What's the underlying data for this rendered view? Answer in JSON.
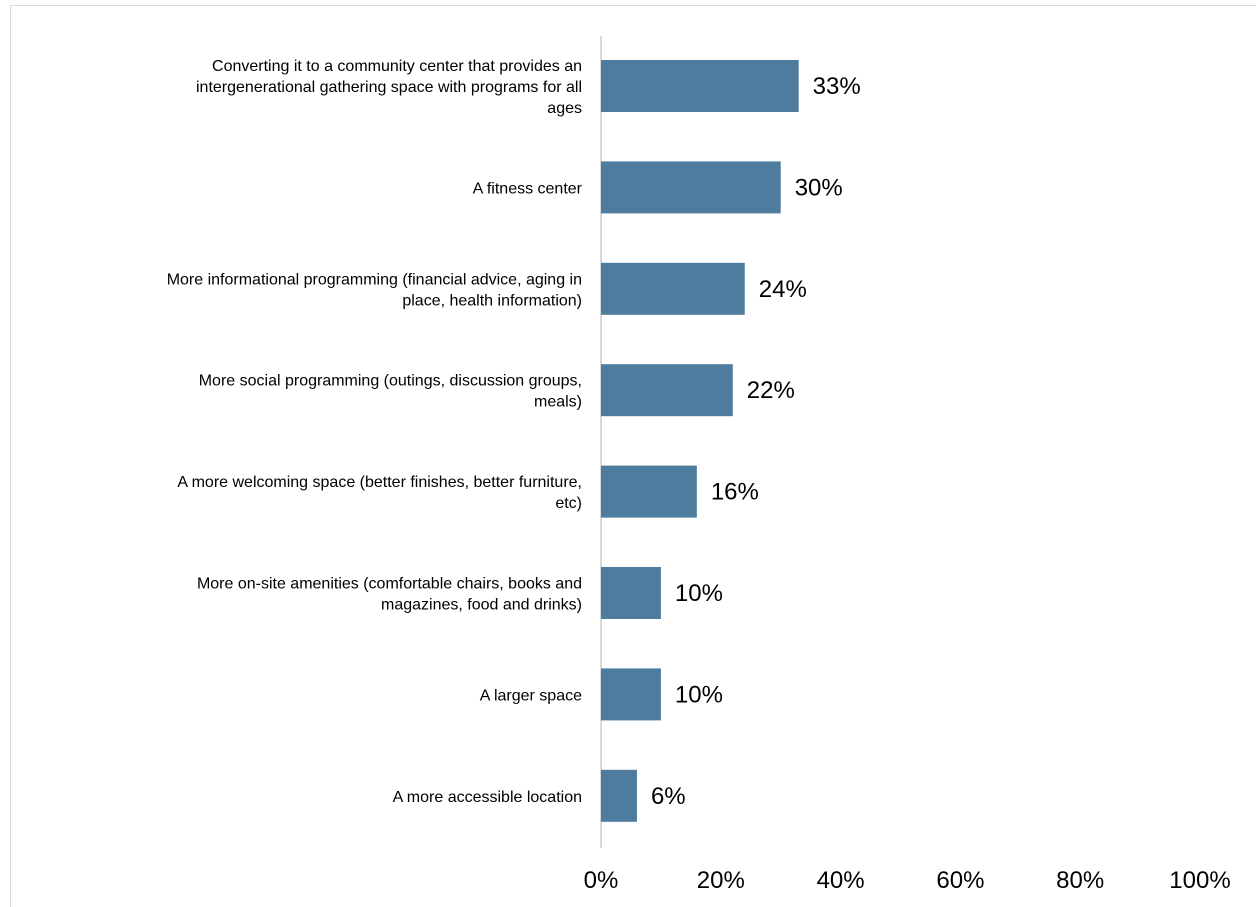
{
  "chart_data": {
    "type": "bar",
    "orientation": "horizontal",
    "categories": [
      "Converting it to a community center that provides an intergenerational gathering space with programs for all ages",
      "A fitness center",
      "More informational programming (financial advice, aging in place, health information)",
      "More social programming (outings, discussion groups, meals)",
      "A more welcoming space (better finishes, better furniture, etc)",
      "More on-site amenities (comfortable chairs, books and magazines, food and drinks)",
      "A larger space",
      "A more accessible location"
    ],
    "category_lines": [
      [
        "Converting it to a community center that provides an",
        "intergenerational gathering space with programs for all",
        "ages"
      ],
      [
        "A fitness center"
      ],
      [
        "More informational programming (financial advice, aging in",
        "place, health information)"
      ],
      [
        "More social programming (outings, discussion groups,",
        "meals)"
      ],
      [
        "A more welcoming space (better finishes, better furniture,",
        "etc)"
      ],
      [
        "More on-site amenities (comfortable chairs, books and",
        "magazines, food and drinks)"
      ],
      [
        "A larger space"
      ],
      [
        "A more accessible location"
      ]
    ],
    "values": [
      33,
      30,
      24,
      22,
      16,
      10,
      10,
      6
    ],
    "value_labels": [
      "33%",
      "30%",
      "24%",
      "22%",
      "16%",
      "10%",
      "10%",
      "6%"
    ],
    "xlim": [
      0,
      100
    ],
    "x_ticks": [
      0,
      20,
      40,
      60,
      80,
      100
    ],
    "x_tick_labels": [
      "0%",
      "20%",
      "40%",
      "60%",
      "80%",
      "100%"
    ],
    "bar_color": "#4e7c9e",
    "axis_color": "#d9d9d9",
    "grid": false,
    "legend": "none",
    "title": "",
    "xlabel": "",
    "ylabel": ""
  }
}
